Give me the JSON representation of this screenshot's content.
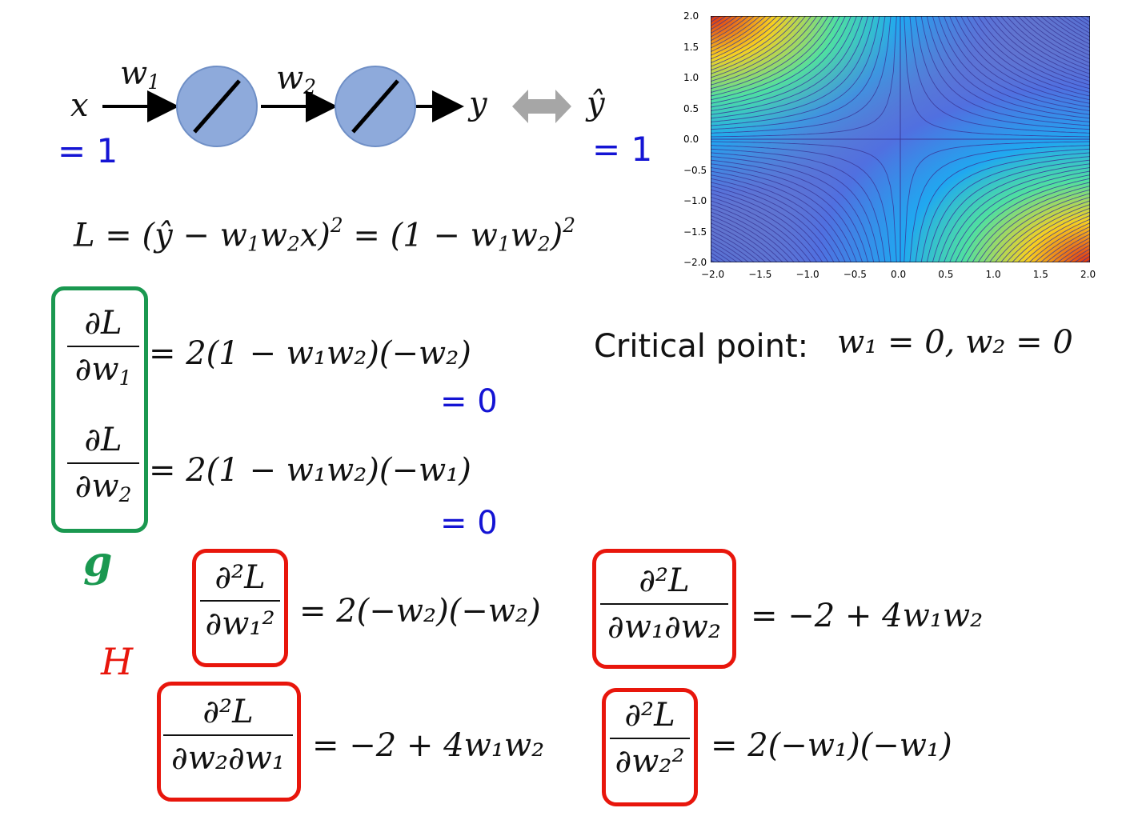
{
  "network": {
    "input_var": "x",
    "input_value": "= 1",
    "weight1": "w",
    "weight1_sub": "1",
    "weight2": "w",
    "weight2_sub": "2",
    "output_var": "y",
    "target_var": "ŷ",
    "target_value": "= 1"
  },
  "loss": {
    "lhs": "L = (ŷ − w",
    "mid1": "w",
    "mid2": "x)",
    "exp": "2",
    "rhs1": " = (1 − w",
    "rhs2": "w",
    "rhs3": ")"
  },
  "gradient": {
    "d1_num": "∂L",
    "d1_den": "∂w",
    "d1_den_sub": "1",
    "d1_rhs": "= 2(1 − w₁w₂)(−w₂)",
    "d1_zero": "= 0",
    "d2_num": "∂L",
    "d2_den": "∂w",
    "d2_den_sub": "2",
    "d2_rhs": "= 2(1 − w₁w₂)(−w₁)",
    "d2_zero": "= 0",
    "label": "g"
  },
  "critical": {
    "label": "Critical point:",
    "value": "w₁ = 0, w₂ = 0"
  },
  "hessian": {
    "label": "H",
    "h11_num": "∂²L",
    "h11_den": "∂w₁²",
    "h11_rhs": "= 2(−w₂)(−w₂)",
    "h12_num": "∂²L",
    "h12_den": "∂w₁∂w₂",
    "h12_rhs": "= −2 + 4w₁w₂",
    "h21_num": "∂²L",
    "h21_den": "∂w₂∂w₁",
    "h21_rhs": "= −2 + 4w₁w₂",
    "h22_num": "∂²L",
    "h22_den": "∂w₂²",
    "h22_rhs": "= 2(−w₁)(−w₁)"
  },
  "colors": {
    "blue_text": "#1414d4",
    "green_box": "#1a9850",
    "red_box": "#e8160c",
    "neuron_fill": "#8eaadb",
    "arrow_gray": "#a6a6a6"
  },
  "chart_data": {
    "type": "contour",
    "function": "(1 - w1*w2)^2",
    "xlim": [
      -2.0,
      2.0
    ],
    "ylim": [
      -2.0,
      2.0
    ],
    "x_ticks": [
      "−2.0",
      "−1.5",
      "−1.0",
      "−0.5",
      "0.0",
      "0.5",
      "1.0",
      "1.5",
      "2.0"
    ],
    "y_ticks": [
      "2.0",
      "1.5",
      "1.0",
      "0.5",
      "0.0",
      "−0.5",
      "−1.0",
      "−1.5",
      "−2.0"
    ],
    "colormap": "jet"
  }
}
